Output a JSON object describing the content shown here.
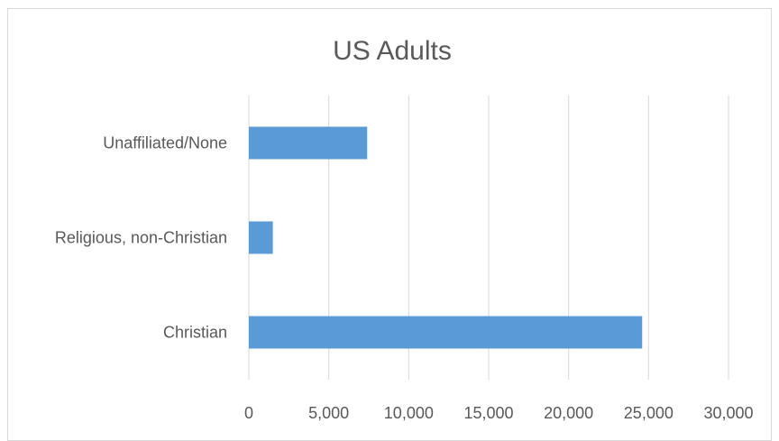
{
  "chart_data": {
    "type": "bar",
    "orientation": "horizontal",
    "title": "US Adults",
    "categories": [
      "Unaffiliated/None",
      "Religious, non-Christian",
      "Christian"
    ],
    "values": [
      7400,
      1500,
      24600
    ],
    "xlim": [
      0,
      30000
    ],
    "ticks": [
      "0",
      "5,000",
      "10,000",
      "15,000",
      "20,000",
      "25,000",
      "30,000"
    ],
    "tick_values": [
      0,
      5000,
      10000,
      15000,
      20000,
      25000,
      30000
    ],
    "grid": true,
    "bar_color": "#5b9bd5"
  }
}
